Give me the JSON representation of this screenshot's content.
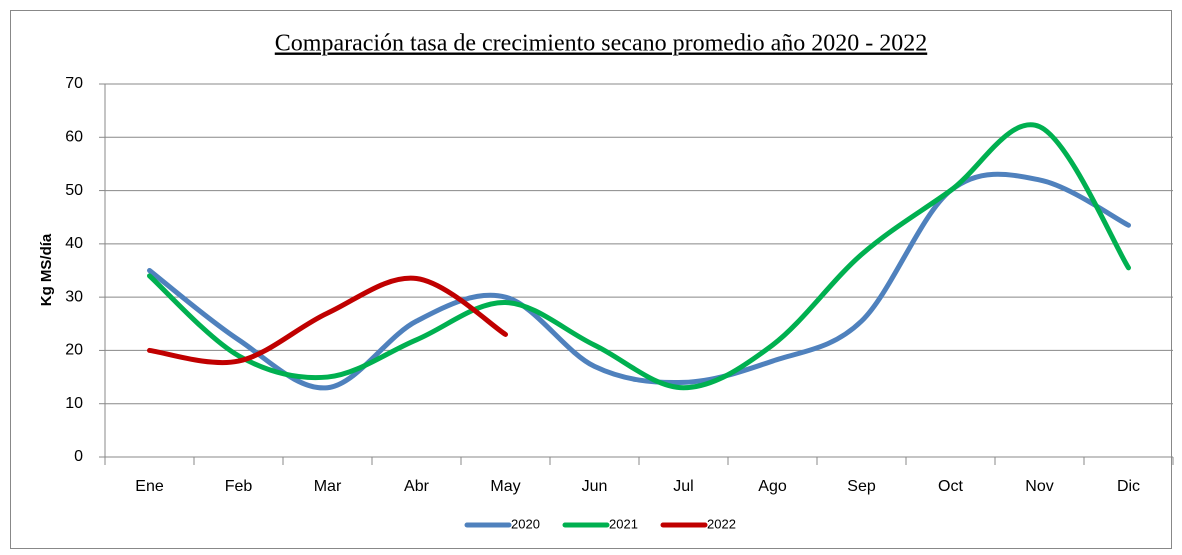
{
  "chart_data": {
    "type": "line",
    "smooth": true,
    "title": "Comparación tasa de crecimiento secano promedio año 2020 - 2022",
    "y_label": "Kg MS/día",
    "categories": [
      "Ene",
      "Feb",
      "Mar",
      "Abr",
      "May",
      "Jun",
      "Jul",
      "Ago",
      "Sep",
      "Oct",
      "Nov",
      "Dic"
    ],
    "series": [
      {
        "name": "2020",
        "color": "#4f81bd",
        "values": [
          35,
          22,
          13,
          25.5,
          30,
          17,
          14,
          18,
          25.5,
          50,
          52,
          43.5
        ]
      },
      {
        "name": "2021",
        "color": "#00b050",
        "values": [
          34,
          19,
          15,
          22,
          29,
          21,
          13,
          21,
          38,
          50,
          62,
          35.5
        ]
      },
      {
        "name": "2022",
        "color": "#c00000",
        "values": [
          20,
          18,
          27,
          33.5,
          23,
          null,
          null,
          null,
          null,
          null,
          null,
          null
        ]
      }
    ],
    "ylim": [
      0,
      70
    ],
    "yticks": [
      0,
      10,
      20,
      30,
      40,
      50,
      60,
      70
    ],
    "grid": true,
    "legend": "bottom"
  }
}
